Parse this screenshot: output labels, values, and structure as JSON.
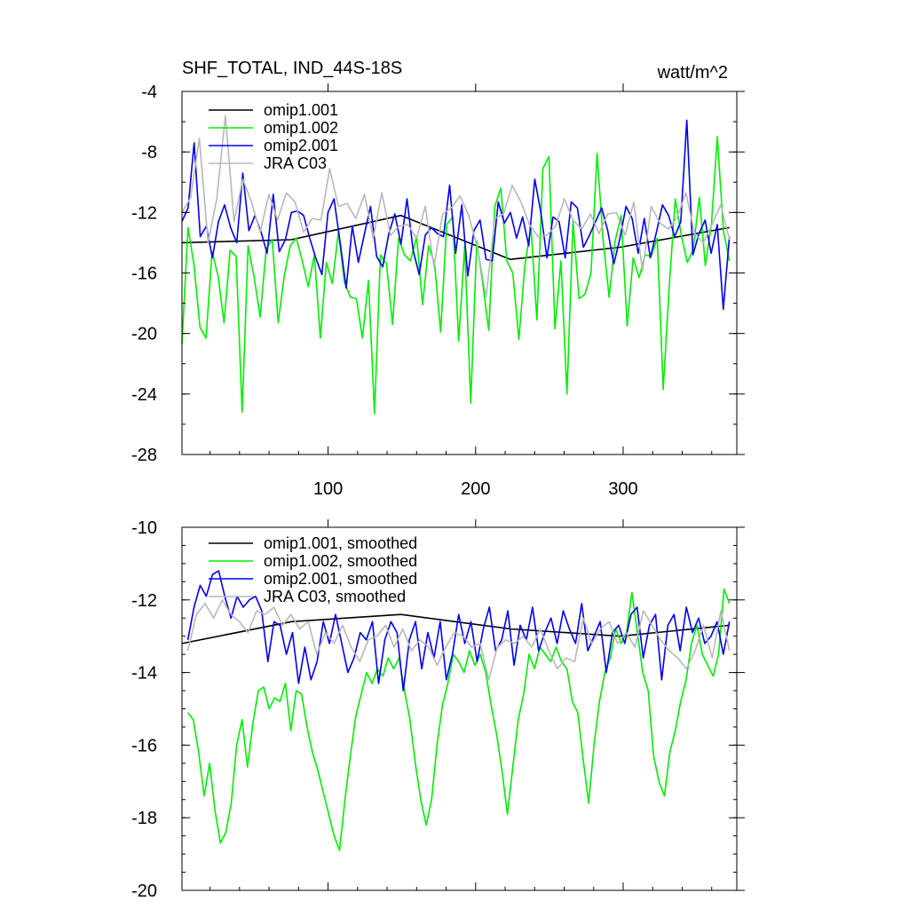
{
  "figure": {
    "title_left": "SHF_TOTAL, IND_44S-18S",
    "title_right": "watt/m^2"
  },
  "chart_data": [
    {
      "type": "line",
      "title": "SHF_TOTAL, IND_44S-18S",
      "units": "watt/m^2",
      "xlim": [
        1,
        377
      ],
      "ylim": [
        -28,
        -4
      ],
      "x_ticks": [
        100,
        200,
        300
      ],
      "y_ticks": [
        -28,
        -24,
        -20,
        -16,
        -12,
        -8,
        -4
      ],
      "x_tick_labels": [
        "100",
        "200",
        "300"
      ],
      "y_tick_labels": [
        "-28",
        "-24",
        "-20",
        "-16",
        "-12",
        "-8",
        "-4"
      ],
      "legend_position": "top-left",
      "grid": false,
      "series": [
        {
          "name": "omip1.001",
          "color": "#000000",
          "x_start": 1,
          "values": [
            -14.0,
            -13.8,
            -12.2,
            -15.1,
            -14.3,
            -13.0
          ]
        },
        {
          "name": "omip1.002",
          "color": "#00ee00",
          "x_start": 1,
          "values": [
            -20.7,
            -13.0,
            -15.5,
            -19.6,
            -20.3,
            -14.6,
            -16.2,
            -19.3,
            -14.5,
            -14.9,
            -25.2,
            -14.2,
            -16.3,
            -18.9,
            -14.4,
            -13.8,
            -19.3,
            -16.2,
            -14.2,
            -13.7,
            -15.2,
            -16.9,
            -14.8,
            -20.3,
            -15.3,
            -16.7,
            -13.3,
            -16.6,
            -17.6,
            -17.7,
            -20.3,
            -16.5,
            -25.3,
            -14.8,
            -15.4,
            -19.4,
            -13.7,
            -14.8,
            -15.2,
            -13.6,
            -18.1,
            -14.2,
            -15.4,
            -19.9,
            -12.8,
            -12.3,
            -20.5,
            -14.2,
            -24.6,
            -13.9,
            -16.7,
            -19.8,
            -11.6,
            -10.4,
            -15.2,
            -16.0,
            -20.4,
            -15.5,
            -12.9,
            -19.1,
            -9.1,
            -8.3,
            -19.7,
            -15.2,
            -24.0,
            -12.6,
            -17.7,
            -17.4,
            -16.0,
            -8.1,
            -13.8,
            -17.6,
            -13.9,
            -12.2,
            -19.5,
            -15.0,
            -16.3,
            -14.8,
            -14.9,
            -13.7,
            -23.7,
            -16.9,
            -11.1,
            -13.5,
            -15.3,
            -14.4,
            -11.0,
            -15.5,
            -12.8,
            -7.0,
            -13.2,
            -15.2
          ]
        },
        {
          "name": "omip2.001",
          "color": "#0000ee",
          "x_start": 1,
          "values": [
            -12.6,
            -11.7,
            -7.4,
            -13.6,
            -12.9,
            -15.0,
            -12.6,
            -11.5,
            -13.0,
            -14.0,
            -9.4,
            -13.2,
            -12.2,
            -13.3,
            -14.7,
            -10.8,
            -14.6,
            -13.8,
            -12.0,
            -11.9,
            -12.2,
            -13.7,
            -15.0,
            -16.1,
            -12.0,
            -11.1,
            -14.0,
            -17.0,
            -12.9,
            -15.3,
            -13.4,
            -11.6,
            -14.9,
            -15.6,
            -13.4,
            -12.1,
            -14.1,
            -11.1,
            -14.5,
            -16.1,
            -13.5,
            -13.0,
            -13.4,
            -13.6,
            -10.2,
            -14.7,
            -11.5,
            -16.2,
            -13.2,
            -12.5,
            -15.1,
            -15.2,
            -11.3,
            -12.7,
            -12.0,
            -13.7,
            -12.3,
            -14.2,
            -9.8,
            -12.0,
            -15.0,
            -12.3,
            -12.6,
            -15.0,
            -11.3,
            -11.7,
            -14.3,
            -13.5,
            -12.6,
            -11.7,
            -13.2,
            -15.4,
            -13.7,
            -11.6,
            -12.4,
            -14.7,
            -12.4,
            -15.0,
            -13.3,
            -11.5,
            -12.2,
            -13.6,
            -12.6,
            -5.9,
            -14.8,
            -13.4,
            -12.5,
            -14.7,
            -12.8,
            -18.4,
            -13.6
          ]
        },
        {
          "name": "JRA C03",
          "color": "#b8b8b8",
          "x_start": 1,
          "values": [
            -12.0,
            -11.0,
            -7.1,
            -14.0,
            -11.1,
            -5.6,
            -12.6,
            -9.8,
            -11.3,
            -13.3,
            -10.8,
            -12.5,
            -10.7,
            -11.3,
            -13.3,
            -12.4,
            -12.5,
            -9.1,
            -11.6,
            -11.4,
            -12.4,
            -10.8,
            -13.7,
            -10.7,
            -13.5,
            -12.9,
            -12.8,
            -13.7,
            -11.6,
            -15.6,
            -12.1,
            -11.7,
            -10.9,
            -12.2,
            -14.3,
            -17.6,
            -12.4,
            -12.1,
            -10.2,
            -11.3,
            -12.8,
            -13.6,
            -13.5,
            -12.9,
            -11.1,
            -12.5,
            -13.1,
            -12.1,
            -13.4,
            -12.1,
            -12.0,
            -13.5,
            -11.3,
            -15.9,
            -11.6,
            -12.7,
            -13.1,
            -12.3,
            -10.7,
            -13.4,
            -14.0,
            -12.8,
            -11.5,
            -13.8
          ]
        }
      ]
    },
    {
      "type": "line",
      "xlim": [
        1,
        377
      ],
      "ylim": [
        -20,
        -10
      ],
      "x_ticks": [
        100,
        200,
        300
      ],
      "y_ticks": [
        -20,
        -18,
        -16,
        -14,
        -12,
        -10
      ],
      "x_tick_labels": [
        "100",
        "200",
        "300"
      ],
      "y_tick_labels": [
        "-20",
        "-18",
        "-16",
        "-14",
        "-12",
        "-10"
      ],
      "legend_position": "top-left",
      "grid": false,
      "series": [
        {
          "name": "omip1.001, smoothed",
          "color": "#000000",
          "x_start": 1,
          "values": [
            -13.2,
            -12.6,
            -12.4,
            -12.8,
            -13.0,
            -12.7
          ]
        },
        {
          "name": "omip1.002, smoothed",
          "color": "#00ee00",
          "x_start": 5,
          "values": [
            -15.1,
            -15.3,
            -16.2,
            -17.4,
            -16.5,
            -17.8,
            -18.7,
            -18.4,
            -17.6,
            -16.0,
            -15.3,
            -16.6,
            -15.4,
            -14.5,
            -14.4,
            -15.0,
            -14.7,
            -14.8,
            -14.3,
            -15.6,
            -14.5,
            -14.6,
            -15.5,
            -16.2,
            -16.7,
            -17.3,
            -17.9,
            -18.5,
            -18.9,
            -17.5,
            -16.3,
            -15.2,
            -14.6,
            -14.0,
            -14.3,
            -13.9,
            -14.1,
            -13.6,
            -13.9,
            -13.6,
            -14.5,
            -15.3,
            -16.5,
            -17.5,
            -18.2,
            -17.5,
            -16.0,
            -14.9,
            -14.3,
            -13.5,
            -13.7,
            -14.0,
            -13.4,
            -13.8,
            -13.5,
            -14.0,
            -14.9,
            -15.7,
            -16.7,
            -17.9,
            -16.6,
            -15.3,
            -14.6,
            -13.5,
            -13.9,
            -13.3,
            -13.5,
            -13.7,
            -13.3,
            -13.7,
            -13.9,
            -14.8,
            -15.1,
            -16.4,
            -17.6,
            -16.0,
            -14.8,
            -14.0,
            -13.6,
            -12.8,
            -13.2,
            -12.9,
            -11.8,
            -12.9,
            -14.0,
            -14.5,
            -16.3,
            -17.0,
            -17.4,
            -16.2,
            -15.6,
            -14.8,
            -14.2,
            -13.2,
            -12.7,
            -13.5,
            -13.8,
            -14.1,
            -13.5,
            -11.7,
            -12.1
          ]
        },
        {
          "name": "omip2.001, smoothed",
          "color": "#0000ee",
          "x_start": 5,
          "values": [
            -13.1,
            -12.2,
            -11.6,
            -11.9,
            -11.3,
            -11.2,
            -11.9,
            -12.5,
            -11.9,
            -12.2,
            -12.0,
            -11.9,
            -12.3,
            -13.7,
            -12.6,
            -12.7,
            -13.5,
            -12.9,
            -14.3,
            -13.3,
            -14.2,
            -13.7,
            -12.6,
            -13.2,
            -12.4,
            -13.2,
            -14.0,
            -13.6,
            -12.9,
            -13.1,
            -12.6,
            -14.3,
            -13.1,
            -12.6,
            -12.9,
            -14.5,
            -13.1,
            -12.6,
            -13.9,
            -12.9,
            -13.6,
            -12.6,
            -14.2,
            -13.5,
            -12.4,
            -13.2,
            -12.6,
            -13.7,
            -12.8,
            -12.2,
            -13.4,
            -13.1,
            -12.3,
            -13.8,
            -12.7,
            -13.1,
            -12.2,
            -13.4,
            -12.9,
            -12.5,
            -13.2,
            -12.3,
            -12.8,
            -13.2,
            -12.1,
            -13.4,
            -13.0,
            -12.6,
            -14.0,
            -12.9,
            -12.7,
            -13.2,
            -12.4,
            -12.2,
            -13.6,
            -12.7,
            -12.4,
            -14.2,
            -12.7,
            -12.4,
            -13.4,
            -12.2,
            -12.9,
            -12.5,
            -13.2,
            -13.0,
            -12.6,
            -13.5,
            -12.6
          ]
        },
        {
          "name": "JRA C03, smoothed",
          "color": "#b8b8b8",
          "x_start": 5,
          "values": [
            -13.4,
            -12.4,
            -12.1,
            -12.5,
            -12.0,
            -12.4,
            -12.6,
            -12.9,
            -12.3,
            -12.4,
            -12.2,
            -12.7,
            -12.4,
            -12.8,
            -12.6,
            -13.5,
            -12.9,
            -13.2,
            -12.7,
            -13.3,
            -13.7,
            -13.1,
            -13.0,
            -12.7,
            -13.3,
            -12.8,
            -13.4,
            -13.1,
            -13.3,
            -13.8,
            -13.3,
            -12.9,
            -13.0,
            -13.3,
            -13.2,
            -14.2,
            -13.3,
            -13.1,
            -13.2,
            -13.0,
            -13.3,
            -12.8,
            -13.4,
            -13.9,
            -13.6,
            -13.7,
            -12.5,
            -13.2,
            -12.8,
            -12.6,
            -13.2,
            -12.9,
            -13.3,
            -12.3,
            -12.7,
            -13.1,
            -13.4,
            -13.6,
            -13.9,
            -13.4,
            -12.7,
            -13.6,
            -12.3,
            -13.4
          ]
        }
      ]
    }
  ]
}
